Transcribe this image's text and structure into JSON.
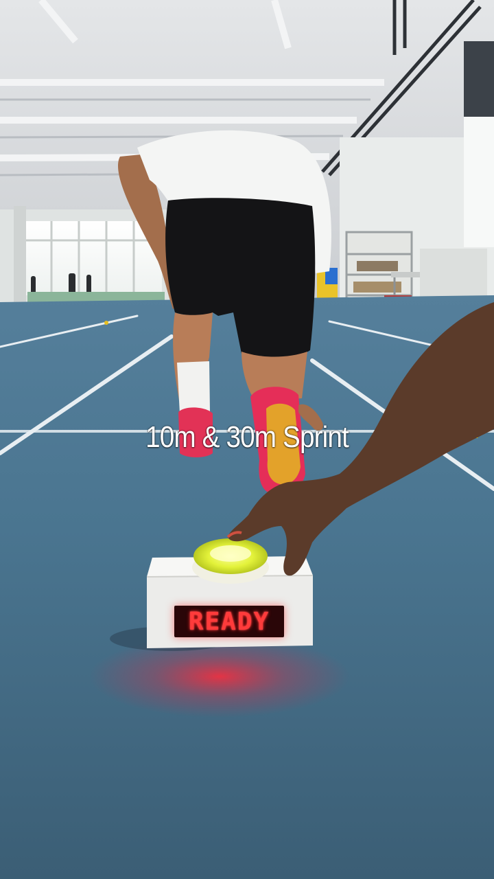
{
  "caption": {
    "text": "10m & 30m Sprint"
  },
  "device": {
    "display_text": "READY"
  },
  "colors": {
    "track": "#4b7590",
    "lane_line": "#e8eef2",
    "button_glow": "#f0ff3a",
    "display_led": "#ff3b3b"
  }
}
